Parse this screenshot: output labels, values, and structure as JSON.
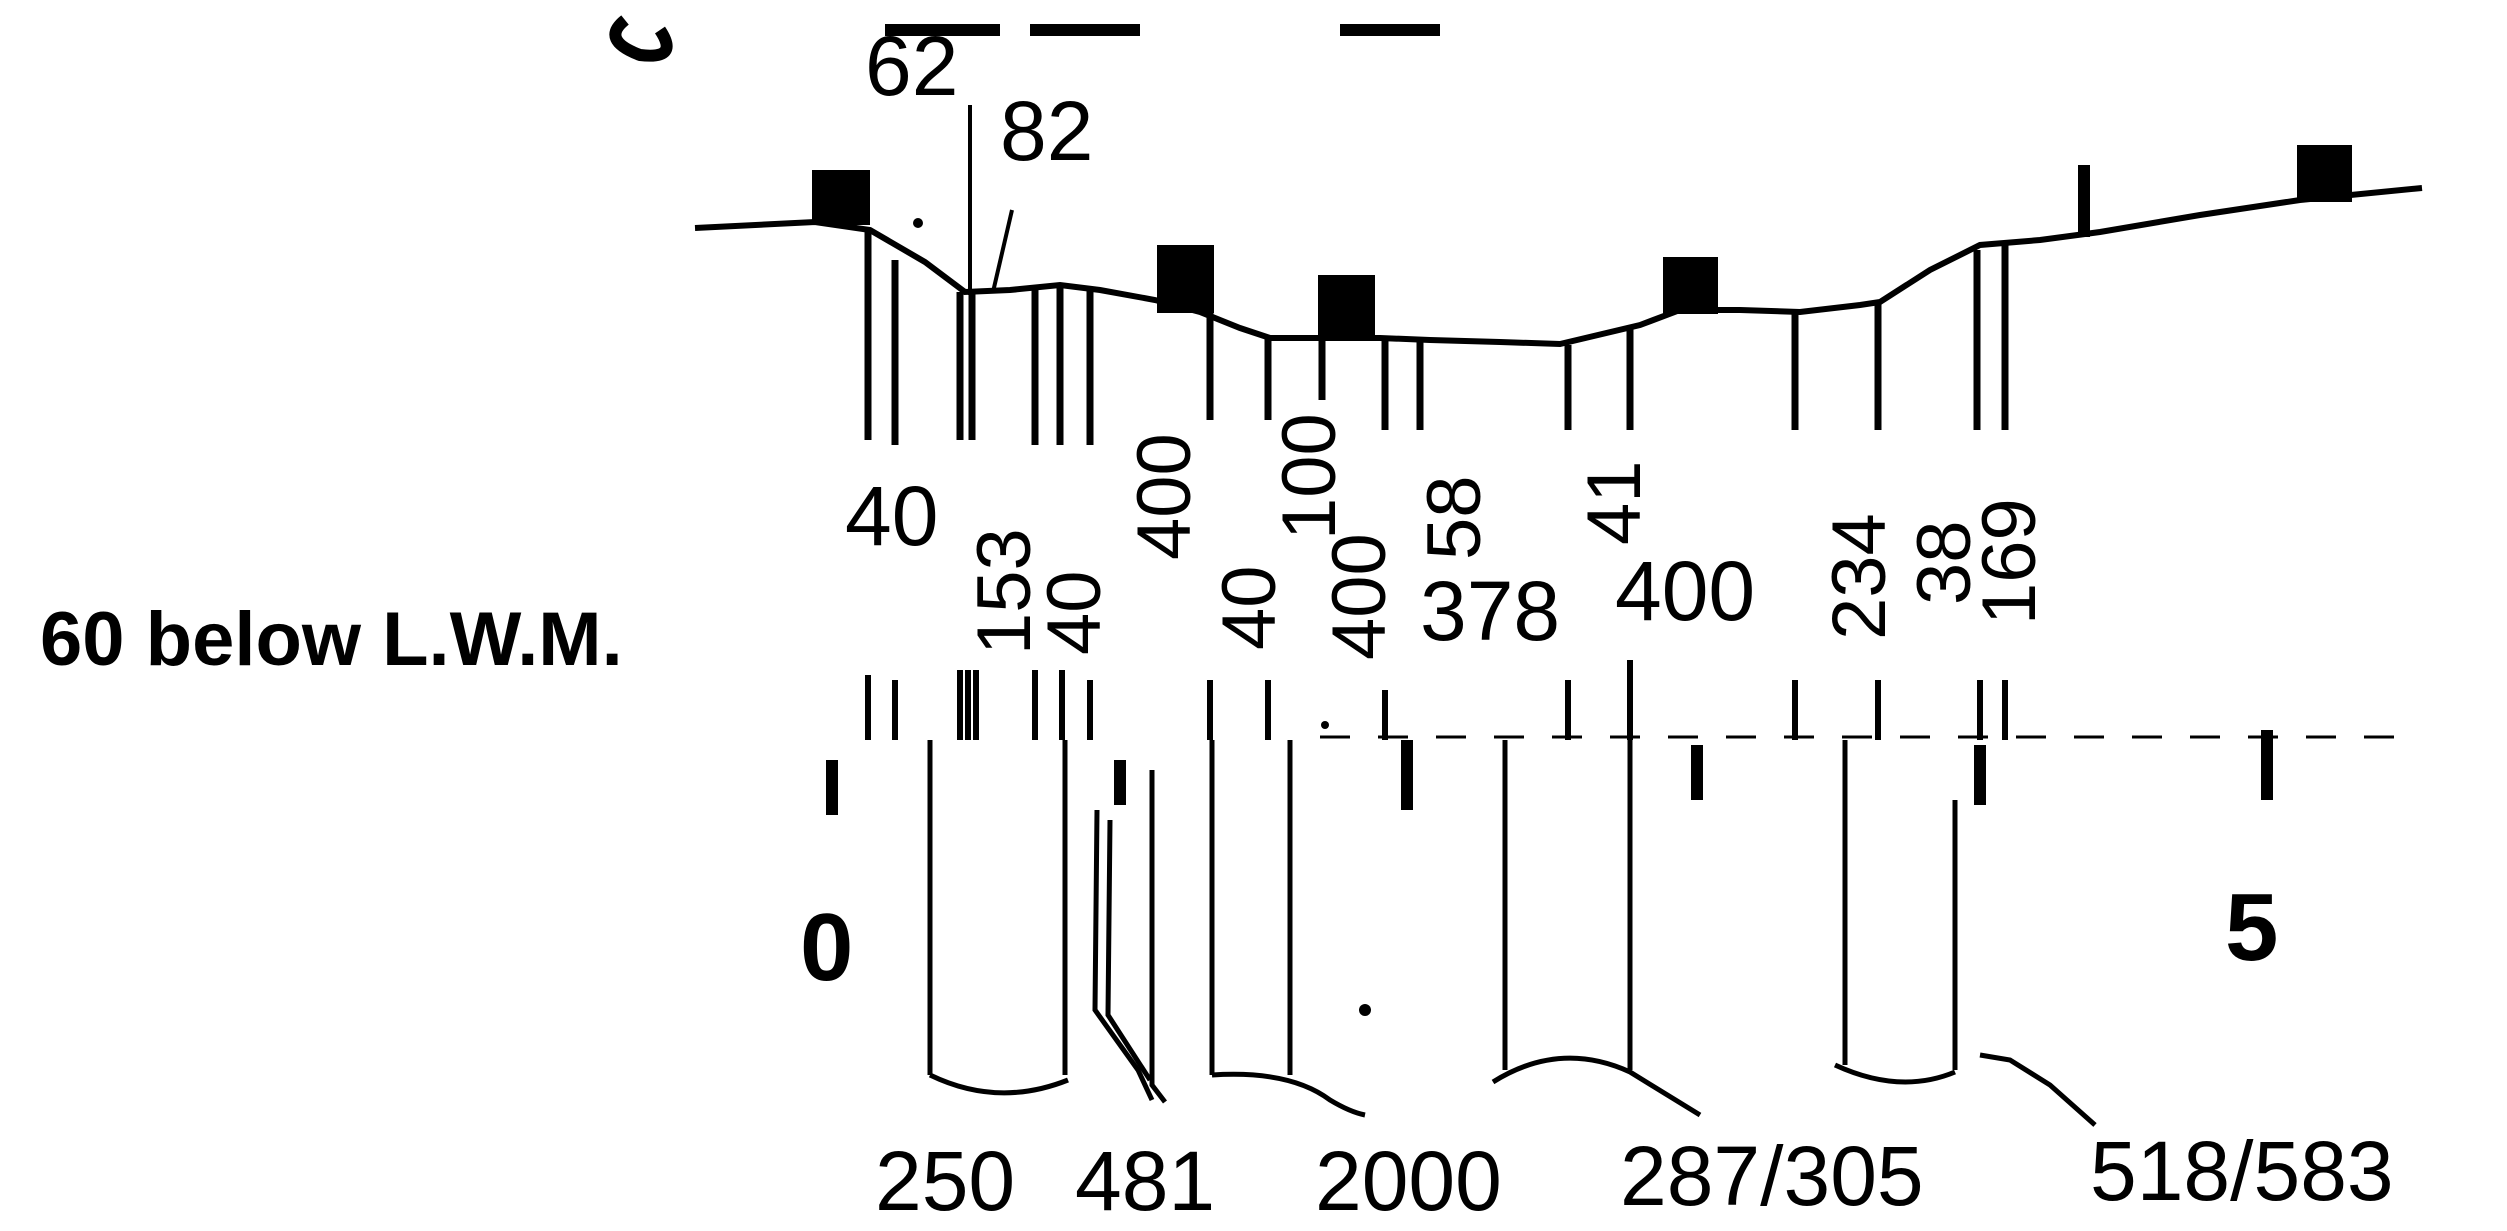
{
  "top_labels": [
    "62",
    "82"
  ],
  "depth_labels": [
    "40",
    "153",
    "40",
    "400",
    "40",
    "100",
    "400",
    "58",
    "378",
    "41",
    "400",
    "234",
    "38",
    "169"
  ],
  "reference_note": "60 below L.W.M.",
  "scale_labels": [
    "0",
    "5"
  ],
  "length_labels": [
    "250",
    "481",
    "2000",
    "287/305",
    "518/583"
  ]
}
